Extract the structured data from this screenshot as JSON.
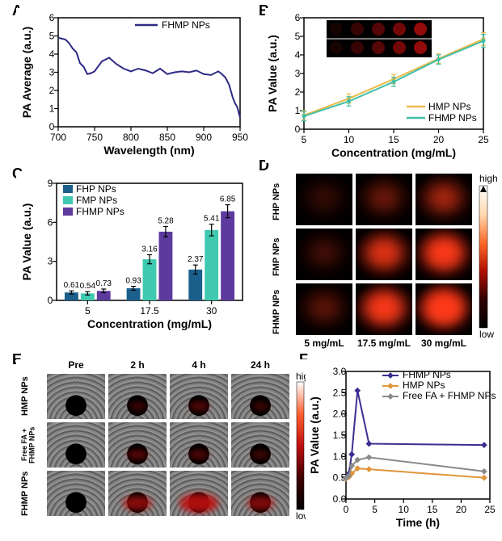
{
  "labels": {
    "A": "A",
    "B": "B",
    "C": "C",
    "D": "D",
    "E": "E",
    "F": "F"
  },
  "panelA": {
    "type": "line",
    "title": "",
    "xlabel": "Wavelength (nm)",
    "ylabel": "PA Average (a.u.)",
    "xlim": [
      700,
      950
    ],
    "ylim": [
      0,
      6
    ],
    "xticks": [
      700,
      750,
      800,
      850,
      900,
      950
    ],
    "yticks": [
      0,
      1,
      2,
      3,
      4,
      5,
      6
    ],
    "series_name": "FHMP NPs",
    "series_color": "#2e2a85",
    "x": [
      700,
      705,
      710,
      715,
      720,
      725,
      730,
      735,
      740,
      745,
      750,
      760,
      770,
      780,
      790,
      800,
      810,
      820,
      830,
      840,
      850,
      860,
      870,
      880,
      890,
      900,
      910,
      920,
      925,
      930,
      935,
      940,
      943,
      946,
      950
    ],
    "y": [
      4.9,
      4.85,
      4.8,
      4.6,
      4.3,
      4.1,
      3.5,
      3.3,
      2.9,
      2.95,
      3.05,
      3.6,
      3.8,
      3.45,
      3.2,
      3.05,
      3.2,
      3.1,
      2.95,
      3.2,
      2.9,
      3.0,
      3.05,
      3.0,
      3.1,
      2.9,
      2.85,
      3.05,
      2.9,
      2.7,
      2.3,
      1.6,
      1.3,
      1.1,
      0.5
    ],
    "label_fontsize": 14,
    "tick_fontsize": 12,
    "line_width": 2
  },
  "panelB": {
    "type": "line",
    "xlabel": "Concentration (mg/mL)",
    "ylabel": "PA Value (a.u.)",
    "xlim": [
      5,
      25
    ],
    "ylim": [
      0,
      6
    ],
    "xticks": [
      5,
      10,
      15,
      20,
      25
    ],
    "yticks": [
      0,
      1,
      2,
      3,
      4,
      5,
      6
    ],
    "series": [
      {
        "name": "HMP NPs",
        "color": "#e9b94a",
        "x": [
          5,
          10,
          15,
          20,
          25
        ],
        "y": [
          0.75,
          1.65,
          2.7,
          3.8,
          4.85
        ],
        "err": [
          0.25,
          0.25,
          0.25,
          0.25,
          0.35
        ]
      },
      {
        "name": "FHMP NPs",
        "color": "#3fbfa8",
        "x": [
          5,
          10,
          15,
          20,
          25
        ],
        "y": [
          0.7,
          1.5,
          2.55,
          3.75,
          4.75
        ],
        "err": [
          0.25,
          0.25,
          0.25,
          0.25,
          0.35
        ]
      }
    ],
    "inset_bg": "#000000",
    "inset_red": "#9a0b0b"
  },
  "panelC": {
    "type": "bar",
    "xlabel": "Concentration (mg/mL)",
    "ylabel": "PA Value (a.u.)",
    "ylim": [
      0,
      9
    ],
    "yticks": [
      0,
      3,
      6,
      9
    ],
    "categories": [
      "5",
      "17.5",
      "30"
    ],
    "series": [
      {
        "name": "FHP NPs",
        "color": "#1b5f8c",
        "values": [
          0.61,
          0.93,
          2.37
        ],
        "err": [
          0.12,
          0.15,
          0.35
        ],
        "labels": [
          "0.61",
          "0.93",
          "2.37"
        ]
      },
      {
        "name": "FMP NPs",
        "color": "#3fc9b0",
        "values": [
          0.54,
          3.16,
          5.41
        ],
        "err": [
          0.13,
          0.35,
          0.45
        ],
        "labels": [
          "0.54",
          "3.16",
          "5.41"
        ]
      },
      {
        "name": "FHMP NPs",
        "color": "#5d3b9e",
        "values": [
          0.73,
          5.28,
          6.85
        ],
        "err": [
          0.14,
          0.4,
          0.5
        ],
        "labels": [
          "0.73",
          "5.28",
          "6.85"
        ]
      }
    ],
    "bar_width": 0.22,
    "gap": 0.04
  },
  "panelD": {
    "type": "image-grid",
    "rows": [
      "FHP NPs",
      "FMP NPs",
      "FHMP NPs"
    ],
    "cols": [
      "5 mg/mL",
      "17.5 mg/mL",
      "30 mg/mL"
    ],
    "intensity": [
      [
        0.08,
        0.18,
        0.32
      ],
      [
        0.1,
        0.55,
        0.8
      ],
      [
        0.15,
        0.75,
        1.0
      ]
    ],
    "bg": "#000000",
    "red_low": "#2b0000",
    "red_mid": "#800000",
    "red_high": "#ff3a1a",
    "colorbar_high": "high",
    "colorbar_low": "low",
    "colorbar_colors": [
      "#ffffff",
      "#ffdab0",
      "#ff6a2a",
      "#b01000",
      "#300000",
      "#000000"
    ]
  },
  "panelE": {
    "type": "image-grid",
    "rows": [
      "HMP NPs",
      "Free FA + FHMP NPs",
      "FHMP NPs"
    ],
    "cols": [
      "Pre",
      "2 h",
      "4 h",
      "24 h"
    ],
    "signal": [
      [
        0.0,
        0.02,
        0.1,
        0.02
      ],
      [
        0.0,
        0.12,
        0.08,
        0.03
      ],
      [
        0.0,
        0.35,
        0.55,
        0.3
      ]
    ],
    "us_gray": "#808080",
    "red": "#c01010",
    "colorbar_high": "high",
    "colorbar_low": "low",
    "colorbar_colors": [
      "#ffffff",
      "#ff6030",
      "#c01010",
      "#400000",
      "#000000"
    ]
  },
  "panelF": {
    "type": "line",
    "xlabel": "Time (h)",
    "ylabel": "PA Value (a.u.)",
    "xlim": [
      0,
      25
    ],
    "ylim": [
      0,
      3.0
    ],
    "xticks": [
      0,
      5,
      10,
      15,
      20,
      25
    ],
    "yticks": [
      0,
      0.5,
      1.0,
      1.5,
      2.0,
      2.5,
      3.0
    ],
    "yticklabels": [
      "0.0",
      "0.5",
      "1.0",
      "1.5",
      "2.0",
      "2.5",
      "3.0"
    ],
    "series": [
      {
        "name": "FHMP NPs",
        "color": "#3b2e8f",
        "marker": "diamond",
        "x": [
          0,
          0.5,
          1,
          2,
          4,
          24
        ],
        "y": [
          0.5,
          0.6,
          1.05,
          2.55,
          1.3,
          1.27
        ]
      },
      {
        "name": "HMP NPs",
        "color": "#e0953a",
        "marker": "diamond",
        "x": [
          0,
          0.5,
          1,
          2,
          4,
          24
        ],
        "y": [
          0.48,
          0.52,
          0.6,
          0.72,
          0.7,
          0.5
        ]
      },
      {
        "name": "Free FA + FHMP NPs",
        "color": "#8a8a8a",
        "marker": "diamond",
        "x": [
          0,
          0.5,
          1,
          2,
          4,
          24
        ],
        "y": [
          0.49,
          0.55,
          0.78,
          0.92,
          0.98,
          0.65
        ]
      }
    ]
  }
}
